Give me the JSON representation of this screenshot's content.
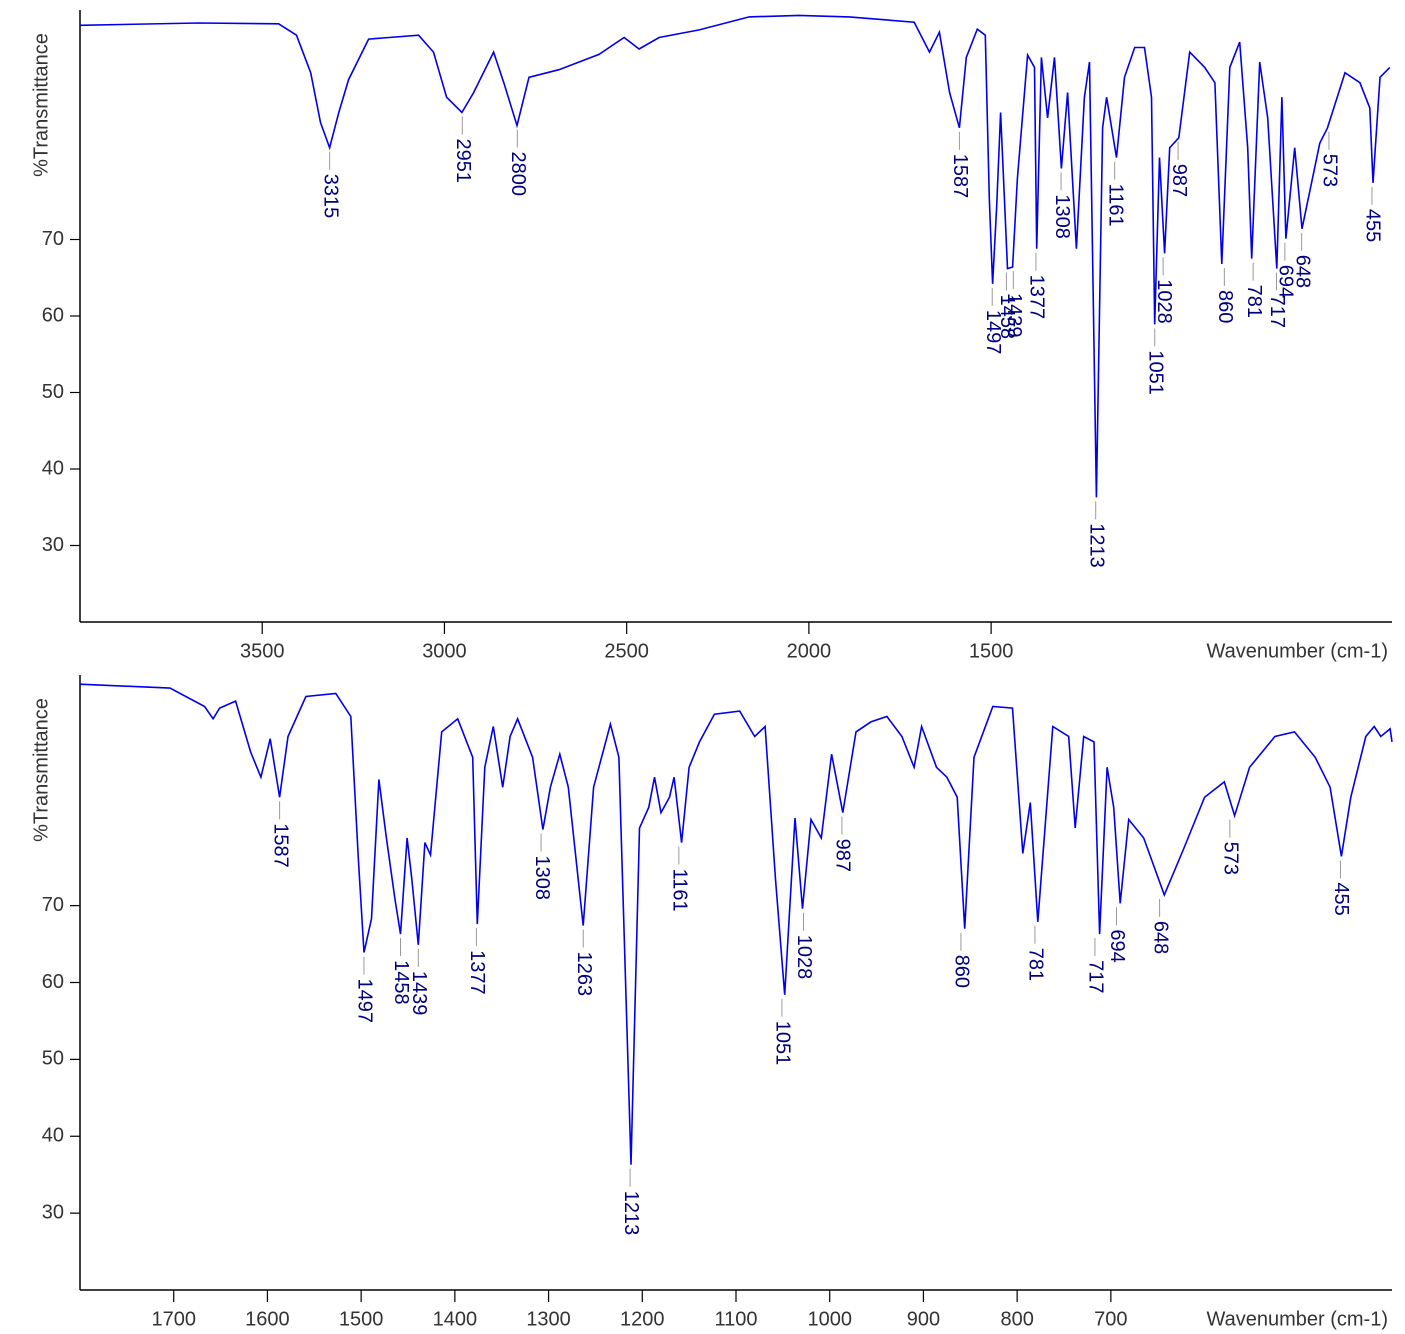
{
  "chart_data": [
    {
      "type": "line",
      "x_label": "Wavenumber (cm-1)",
      "y_label": "%Transmittance",
      "color": "#0000ee",
      "xlim": [
        4000,
        400
      ],
      "ylim": [
        20,
        100
      ],
      "xticks": [
        3500,
        3000,
        2500,
        2000,
        1500
      ],
      "yticks": [
        30,
        40,
        50,
        60,
        70
      ],
      "x": [
        4000,
        3675,
        3455,
        3406,
        3367,
        3340,
        3315,
        3290,
        3263,
        3208,
        3071,
        3030,
        2994,
        2952,
        2920,
        2865,
        2837,
        2801,
        2768,
        2686,
        2576,
        2507,
        2466,
        2411,
        2301,
        2164,
        2027,
        1889,
        1711,
        1669,
        1642,
        1614,
        1587,
        1568,
        1538,
        1516,
        1505,
        1496,
        1485,
        1474,
        1455,
        1441,
        1428,
        1400,
        1381,
        1375,
        1362,
        1345,
        1326,
        1307,
        1290,
        1266,
        1244,
        1230,
        1211,
        1194,
        1183,
        1156,
        1134,
        1106,
        1079,
        1060,
        1051,
        1038,
        1024,
        1010,
        985,
        955,
        914,
        886,
        867,
        845,
        818,
        796,
        785,
        763,
        741,
        716,
        702,
        691,
        667,
        647,
        598,
        577,
        529,
        488,
        461,
        452,
        433,
        406
      ],
      "values": [
        98.0,
        98.3,
        98.2,
        96.7,
        91.8,
        85.3,
        82.0,
        86.6,
        90.9,
        96.2,
        96.7,
        94.5,
        88.6,
        86.6,
        89.2,
        94.5,
        90.5,
        84.9,
        91.2,
        92.2,
        94.2,
        96.4,
        94.9,
        96.4,
        97.4,
        99.1,
        99.3,
        99.1,
        98.4,
        94.5,
        97.1,
        89.2,
        84.6,
        93.8,
        97.5,
        96.7,
        75.4,
        64.2,
        74.1,
        86.6,
        66.2,
        66.4,
        78.0,
        94.1,
        92.5,
        68.8,
        93.8,
        85.9,
        93.8,
        79.3,
        89.2,
        68.8,
        88.6,
        93.2,
        36.3,
        84.6,
        88.6,
        80.7,
        91.2,
        95.1,
        95.1,
        88.6,
        58.9,
        80.7,
        68.2,
        82.0,
        83.3,
        94.5,
        92.5,
        90.5,
        66.8,
        92.5,
        95.8,
        82.0,
        67.5,
        93.2,
        85.9,
        66.2,
        88.6,
        70.1,
        82.0,
        71.4,
        82.6,
        84.6,
        91.8,
        90.5,
        87.2,
        77.4,
        91.2,
        92.5
      ],
      "peaks": [
        {
          "x": 3315,
          "y": 82.0
        },
        {
          "x": 2951,
          "y": 86.6
        },
        {
          "x": 2800,
          "y": 84.9
        },
        {
          "x": 1587,
          "y": 84.6
        },
        {
          "x": 1497,
          "y": 64.2
        },
        {
          "x": 1458,
          "y": 66.2
        },
        {
          "x": 1439,
          "y": 66.4
        },
        {
          "x": 1377,
          "y": 68.8
        },
        {
          "x": 1308,
          "y": 79.3
        },
        {
          "x": 1213,
          "y": 36.3
        },
        {
          "x": 1161,
          "y": 80.7
        },
        {
          "x": 1051,
          "y": 58.9
        },
        {
          "x": 1028,
          "y": 68.2
        },
        {
          "x": 987,
          "y": 83.3
        },
        {
          "x": 860,
          "y": 66.8
        },
        {
          "x": 781,
          "y": 67.5
        },
        {
          "x": 717,
          "y": 66.2
        },
        {
          "x": 694,
          "y": 70.1
        },
        {
          "x": 648,
          "y": 71.4
        },
        {
          "x": 573,
          "y": 84.6
        },
        {
          "x": 455,
          "y": 77.4
        }
      ]
    },
    {
      "type": "line",
      "x_label": "Wavenumber (cm-1)",
      "y_label": "%Transmittance",
      "color": "#0000ee",
      "xlim": [
        1800,
        400
      ],
      "ylim": [
        20,
        100
      ],
      "xticks": [
        1700,
        1600,
        1500,
        1400,
        1300,
        1200,
        1100,
        1000,
        900,
        800,
        700
      ],
      "yticks": [
        30,
        40,
        50,
        60,
        70
      ],
      "x": [
        1800,
        1704,
        1667,
        1658,
        1651,
        1634,
        1618,
        1607,
        1597,
        1587,
        1578,
        1559,
        1527,
        1511,
        1503,
        1497,
        1489,
        1481,
        1473,
        1464,
        1458,
        1451,
        1446,
        1439,
        1432,
        1426,
        1414,
        1397,
        1381,
        1376,
        1368,
        1359,
        1349,
        1341,
        1333,
        1317,
        1306,
        1298,
        1288,
        1279,
        1263,
        1252,
        1234,
        1225,
        1212,
        1203,
        1193,
        1187,
        1180,
        1171,
        1166,
        1158,
        1150,
        1139,
        1123,
        1096,
        1080,
        1069,
        1058,
        1048,
        1037,
        1029,
        1020,
        1009,
        998,
        986,
        972,
        956,
        939,
        923,
        910,
        902,
        886,
        875,
        864,
        856,
        846,
        826,
        805,
        794,
        786,
        778,
        762,
        745,
        738,
        729,
        718,
        712,
        704,
        697,
        690,
        681,
        665,
        643,
        622,
        600,
        579,
        568,
        552,
        525,
        504,
        482,
        466,
        454,
        444,
        428,
        419,
        412,
        402,
        400
      ],
      "values": [
        98.8,
        98.3,
        95.9,
        94.3,
        95.7,
        96.6,
        90.0,
        86.7,
        91.7,
        84.1,
        92.0,
        97.2,
        97.6,
        94.6,
        76.2,
        63.9,
        68.3,
        86.4,
        78.8,
        70.9,
        66.3,
        78.8,
        73.6,
        64.9,
        78.2,
        76.6,
        92.6,
        94.3,
        89.3,
        67.6,
        88.0,
        93.3,
        85.4,
        92.0,
        94.3,
        89.3,
        79.9,
        85.4,
        89.7,
        85.4,
        67.4,
        85.4,
        93.6,
        89.3,
        36.3,
        80.1,
        82.8,
        86.7,
        82.1,
        84.1,
        86.7,
        78.2,
        88.0,
        91.3,
        94.9,
        95.3,
        92.0,
        93.3,
        73.6,
        58.4,
        81.4,
        69.6,
        81.2,
        78.8,
        89.7,
        82.1,
        92.6,
        93.9,
        94.6,
        92.0,
        88.0,
        93.3,
        88.0,
        86.7,
        84.1,
        67.0,
        89.3,
        95.9,
        95.7,
        76.8,
        83.4,
        67.9,
        93.3,
        92.0,
        80.1,
        92.0,
        91.3,
        66.3,
        88.0,
        82.8,
        70.3,
        81.2,
        78.8,
        71.4,
        77.5,
        84.1,
        86.1,
        81.7,
        88.0,
        92.0,
        92.6,
        89.3,
        85.4,
        76.4,
        84.1,
        92.0,
        93.3,
        92.0,
        93.0,
        91.3
      ],
      "peaks": [
        {
          "x": 1587,
          "y": 84.1
        },
        {
          "x": 1497,
          "y": 63.9
        },
        {
          "x": 1458,
          "y": 66.3
        },
        {
          "x": 1439,
          "y": 64.9
        },
        {
          "x": 1377,
          "y": 67.6
        },
        {
          "x": 1308,
          "y": 79.9
        },
        {
          "x": 1263,
          "y": 67.4
        },
        {
          "x": 1213,
          "y": 36.3
        },
        {
          "x": 1161,
          "y": 78.2
        },
        {
          "x": 1051,
          "y": 58.4
        },
        {
          "x": 1028,
          "y": 69.6
        },
        {
          "x": 987,
          "y": 82.1
        },
        {
          "x": 860,
          "y": 67.0
        },
        {
          "x": 781,
          "y": 67.9
        },
        {
          "x": 717,
          "y": 66.3
        },
        {
          "x": 694,
          "y": 70.3
        },
        {
          "x": 648,
          "y": 71.4
        },
        {
          "x": 573,
          "y": 81.7
        },
        {
          "x": 455,
          "y": 76.4
        }
      ]
    }
  ]
}
